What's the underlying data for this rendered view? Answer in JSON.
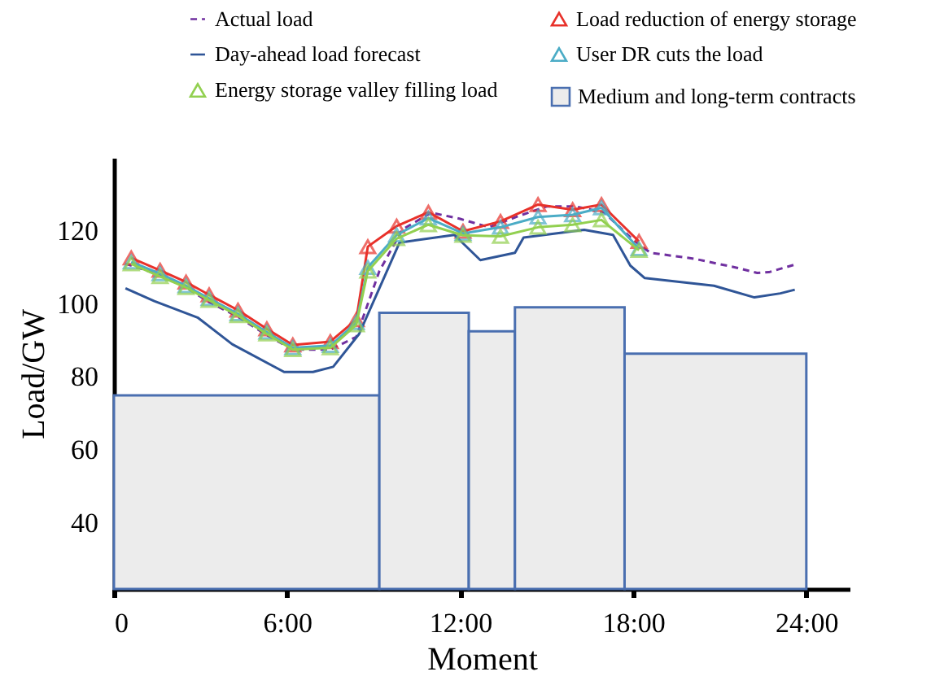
{
  "chart_data": {
    "type": "line",
    "xlabel": "Moment",
    "ylabel": "Load/GW",
    "legend": "top",
    "xlim": [
      0,
      25.5
    ],
    "ylim": [
      22,
      140
    ],
    "xticks": [
      0,
      {
        "value": 6,
        "label": "6:00"
      },
      {
        "value": 12,
        "label": "12:00"
      },
      {
        "value": 18,
        "label": "18:00"
      },
      {
        "value": 24,
        "label": "24:00"
      }
    ],
    "yticks": [
      40,
      60,
      80,
      100,
      120
    ],
    "series": [
      {
        "name": "Actual load",
        "line_style": "dashed",
        "color": "#7030a0",
        "x": [
          0.4,
          1.6,
          2.5,
          3.3,
          4.3,
          5.3,
          6.2,
          7.5,
          8.4,
          9.2,
          10,
          11,
          12,
          13,
          14,
          15,
          16,
          17,
          18,
          18.6,
          20.1,
          21.6,
          22.3,
          22.7,
          23.7
        ],
        "values": [
          111,
          108,
          104.5,
          100.5,
          96.5,
          91.5,
          87.5,
          87.5,
          91,
          109,
          120.4,
          125,
          123.3,
          121,
          124,
          126.7,
          126.7,
          125,
          117.5,
          114,
          112.4,
          109.9,
          108.5,
          108.7,
          111
        ]
      },
      {
        "name": "Load reduction of energy storage",
        "marker": "triangle",
        "color": "#e8312a",
        "x": [
          0.6,
          1.6,
          2.5,
          3.3,
          4.3,
          5.3,
          6.2,
          7.5,
          8.4,
          8.8,
          9.8,
          10.9,
          12.1,
          13.4,
          14.7,
          15.9,
          16.9,
          18.2
        ],
        "values": [
          112.6,
          109.2,
          106,
          102.5,
          98.3,
          93.2,
          88.8,
          89.7,
          95.7,
          115.7,
          121.3,
          125.1,
          119.9,
          122.6,
          127.2,
          125.8,
          127.2,
          117.1
        ]
      },
      {
        "name": "Day-ahead load forecast",
        "color": "#2f5597",
        "x": [
          0.4,
          1.4,
          2.9,
          4.1,
          5.9,
          6.9,
          7.6,
          8.5,
          9.2,
          9.9,
          11.8,
          12.7,
          13.9,
          14.2,
          16.3,
          17.3,
          17.9,
          18.4,
          20.8,
          22.2,
          23.1,
          23.6
        ],
        "values": [
          104.3,
          100.8,
          96.3,
          89,
          81.4,
          81.4,
          82.8,
          91.8,
          104.3,
          116.8,
          118.9,
          112,
          114,
          118.2,
          120.3,
          118.9,
          110.5,
          107.1,
          105,
          101.8,
          102.9,
          103.9
        ]
      },
      {
        "name": "User DR cuts the load",
        "marker": "triangle",
        "color": "#4bacc6",
        "x": [
          0.6,
          1.6,
          2.5,
          3.3,
          4.3,
          5.3,
          6.2,
          7.5,
          8.4,
          8.8,
          9.8,
          10.9,
          12.1,
          13.4,
          14.7,
          15.9,
          16.9,
          18.2
        ],
        "values": [
          111.5,
          108.3,
          105,
          101.5,
          97.3,
          92.3,
          88,
          88.6,
          94.9,
          110,
          118.9,
          123.5,
          119.3,
          121,
          123.8,
          124.4,
          126.3,
          115.1
        ]
      },
      {
        "name": "Energy storage valley filling load",
        "marker": "triangle",
        "color": "#92d050",
        "x": [
          0.6,
          1.6,
          2.5,
          3.3,
          4.3,
          5.3,
          6.2,
          7.5,
          8.4,
          8.8,
          9.8,
          10.9,
          12.1,
          13.4,
          14.7,
          15.9,
          16.9,
          18.2
        ],
        "values": [
          111,
          107.5,
          104.5,
          101,
          96.8,
          91.8,
          87.5,
          88,
          94.3,
          109,
          117.9,
          121.7,
          118.8,
          118.5,
          121,
          121.7,
          123,
          114.7
        ]
      },
      {
        "name": "Medium and long-term contracts",
        "type": "histogram",
        "color": "#ececec",
        "bins": [
          0,
          9.2,
          12.3,
          13.9,
          17.7,
          24
        ],
        "values": [
          75,
          97.6,
          92.5,
          99.1,
          86.4
        ]
      }
    ]
  }
}
